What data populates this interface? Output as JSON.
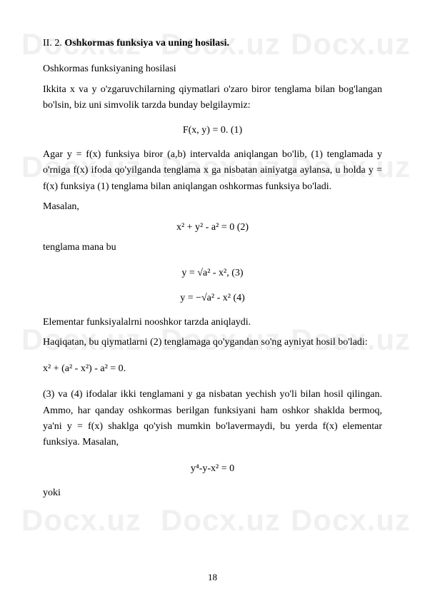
{
  "watermark_text": "Docx.uz",
  "section": {
    "number": "II. 2.",
    "title": "Oshkormas funksiya va uning hosilasi."
  },
  "p1": "Oshkormas funksiyaning hosilasi",
  "p2": "Ikkita x va y o'zgaruvchilarning qiymatlari o'zaro biror tenglama bilan bog'langan bo'lsin, biz uni simvolik tarzda bunday belgilaymiz:",
  "eq1": "F(x, y) = 0.            (1)",
  "p3": "Agar y = f(x) funksiya biror (a,b) intervalda aniqlangan bo'lib, (1) tenglamada y o'rniga f(x) ifoda qo'yilganda tenglama x ga nisbatan ainiyatga aylansa, u holda y = f(x) funksiya (1) tenglama bilan aniqlangan oshkormas funksiya bo'ladi.",
  "p4": "Masalan,",
  "eq2": "x² + y² - a² = 0        (2)",
  "p5": "tenglama mana bu",
  "eq3": "y = √a² - x²,        (3)",
  "eq4": "y = −√a² - x²        (4)",
  "p6": "Elementar funksiyalalrni nooshkor tarzda aniqlaydi.",
  "p7": "Haqiqatan, bu qiymatlarni (2) tenglamaga qo'ygandan so'ng ayniyat hosil bo'ladi:",
  "eq5": "x² + (a² - x²) - a² = 0.",
  "p8": "(3) va (4) ifodalar ikki tenglamani y ga nisbatan yechish yo'li bilan hosil qilingan. Ammo, har qanday oshkormas berilgan funksiyani ham oshkor shaklda bermoq, ya'ni y = f(x) shaklga qo'yish mumkin bo'lavermaydi, bu yerda f(x) elementar funksiya. Masalan,",
  "eq6": "y⁴-y-x² = 0",
  "p9": "yoki",
  "page_number": "18"
}
